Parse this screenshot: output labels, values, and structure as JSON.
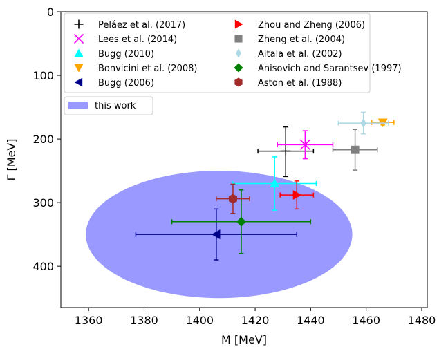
{
  "chart_data": {
    "type": "scatter",
    "title": "",
    "xlabel": "M [MeV]",
    "ylabel": "Γ [MeV]",
    "xlim": [
      1350,
      1482
    ],
    "ylim": [
      0,
      465
    ],
    "y_inverted": true,
    "grid": false,
    "legend_position": "top",
    "x_ticks": [
      "1360",
      "1380",
      "1400",
      "1420",
      "1440",
      "1460",
      "1480"
    ],
    "y_ticks": [
      "0",
      "100",
      "200",
      "300",
      "400"
    ],
    "region": {
      "label": "this work",
      "shape": "ellipse",
      "center": [
        1407,
        350
      ],
      "half_width": 48,
      "half_height": 100,
      "color": "#9999ff"
    },
    "series": [
      {
        "name": "Peláez et al. (2017)",
        "marker": "plus",
        "color": "#000000",
        "x": 1431,
        "y": 219,
        "x_err": [
          10,
          10
        ],
        "y_err": [
          38,
          40
        ]
      },
      {
        "name": "Lees et al. (2014)",
        "marker": "x",
        "color": "#ff00ff",
        "x": 1438,
        "y": 209,
        "x_err": [
          10,
          10
        ],
        "y_err": [
          22,
          22
        ]
      },
      {
        "name": "Bugg (2010)",
        "marker": "triangle-up",
        "color": "#00ffff",
        "x": 1427,
        "y": 270,
        "x_err": [
          15,
          15
        ],
        "y_err": [
          42,
          42
        ]
      },
      {
        "name": "Bonvicini et al. (2008)",
        "marker": "triangle-down",
        "color": "#ffa500",
        "x": 1466,
        "y": 174,
        "x_err": [
          4,
          4
        ],
        "y_err": [
          4,
          4
        ]
      },
      {
        "name": "Bugg (2006)",
        "marker": "triangle-left",
        "color": "#00008b",
        "x": 1406,
        "y": 350,
        "x_err": [
          29,
          29
        ],
        "y_err": [
          40,
          40
        ]
      },
      {
        "name": "Zhou and Zheng (2006)",
        "marker": "triangle-right",
        "color": "#ff0000",
        "x": 1435,
        "y": 288,
        "x_err": [
          6,
          6
        ],
        "y_err": [
          22,
          22
        ]
      },
      {
        "name": "Zheng et al. (2004)",
        "marker": "square",
        "color": "#808080",
        "x": 1456,
        "y": 217,
        "x_err": [
          8,
          8
        ],
        "y_err": [
          32,
          32
        ]
      },
      {
        "name": "Aitala et al. (2002)",
        "marker": "diamond-thin",
        "color": "#add8e6",
        "x": 1459,
        "y": 175,
        "x_err": [
          9,
          9
        ],
        "y_err": [
          17,
          17
        ]
      },
      {
        "name": "Anisovich and Sarantsev (1997)",
        "marker": "diamond",
        "color": "#008000",
        "x": 1415,
        "y": 330,
        "x_err": [
          25,
          25
        ],
        "y_err": [
          50,
          50
        ]
      },
      {
        "name": "Aston et al. (1988)",
        "marker": "hexagon",
        "color": "#a52a2a",
        "x": 1412,
        "y": 294,
        "x_err": [
          6,
          6
        ],
        "y_err": [
          23,
          23
        ]
      }
    ]
  }
}
